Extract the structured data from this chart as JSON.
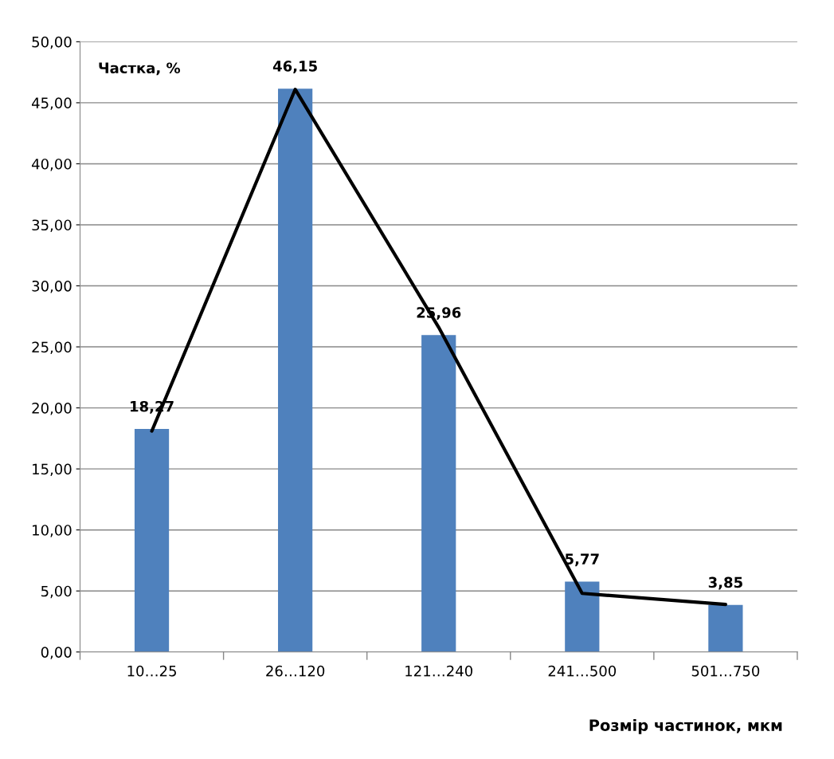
{
  "chart_data": {
    "type": "bar",
    "xlabel": "Розмір частинок, мкм",
    "ylabel": "Частка, %",
    "categories": [
      "10…25",
      "26…120",
      "121…240",
      "241…500",
      "501…750"
    ],
    "series": [
      {
        "color": "#4f81bd",
        "values": [
          18.27,
          46.15,
          25.96,
          5.77,
          3.85
        ],
        "value_labels": [
          "18,27",
          "46,15",
          "25,96",
          "5,77",
          "3,85"
        ]
      },
      {
        "type": "line",
        "color": "#000000",
        "values": [
          18.1,
          46.1,
          26.6,
          4.8,
          3.9
        ]
      }
    ],
    "ylim": [
      0,
      50
    ],
    "yticks": [
      {
        "value": 0,
        "label": "0,00"
      },
      {
        "value": 5,
        "label": "5,00"
      },
      {
        "value": 10,
        "label": "10,00"
      },
      {
        "value": 15,
        "label": "15,00"
      },
      {
        "value": 20,
        "label": "20,00"
      },
      {
        "value": 25,
        "label": "25,00"
      },
      {
        "value": 30,
        "label": "30,00"
      },
      {
        "value": 35,
        "label": "35,00"
      },
      {
        "value": 40,
        "label": "40,00"
      },
      {
        "value": 45,
        "label": "45,00"
      },
      {
        "value": 50,
        "label": "50,00"
      }
    ],
    "grid": "y",
    "legend": false
  }
}
